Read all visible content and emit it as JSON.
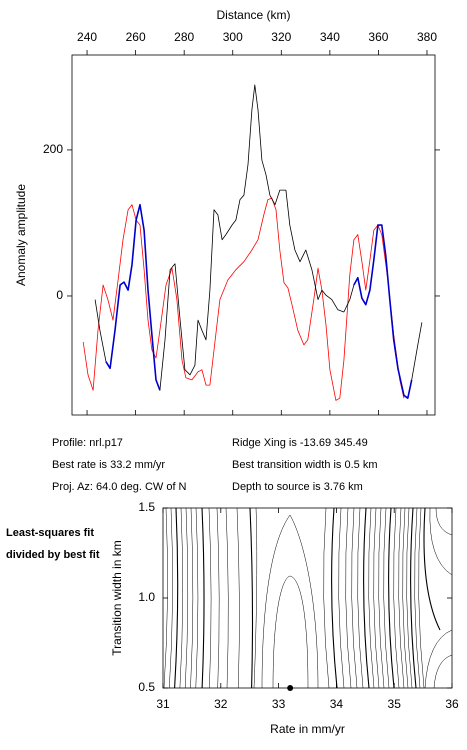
{
  "chart_data": [
    {
      "type": "line",
      "xlabel": "Distance (km)",
      "ylabel": "Anomaly amplitude",
      "xlim": [
        233.8,
        383.3
      ],
      "ylim": [
        -163,
        330
      ],
      "xticks": [
        240,
        260,
        280,
        300,
        320,
        340,
        360,
        380
      ],
      "yticks": [
        0,
        200
      ],
      "annotations": [
        "Profile: nrl.p17",
        "Best rate is 33.2 mm/yr",
        "Proj. Az: 64.0 deg. CW of N",
        "Ridge Xing is -13.69 345.49",
        "Best transition width is 0.5 km",
        "Depth to source is   3.76 km"
      ],
      "series": [
        {
          "name": "observed",
          "color": "#000000",
          "width": 0.8,
          "x": [
            243.3,
            245.3,
            247.8,
            249.5,
            251.5,
            253.6,
            255.2,
            256.9,
            258.5,
            260.2,
            261.8,
            263.5,
            265.1,
            266.7,
            268.4,
            270.0,
            272.1,
            274.2,
            276.2,
            278.3,
            280.3,
            282.4,
            284.4,
            285.7,
            287.3,
            289.0,
            290.6,
            292.3,
            293.9,
            295.6,
            297.2,
            299.7,
            301.3,
            303.0,
            304.6,
            306.3,
            307.9,
            309.1,
            310.4,
            312.0,
            313.7,
            315.3,
            317.4,
            319.4,
            321.9,
            323.5,
            325.6,
            327.7,
            330.1,
            332.6,
            335.1,
            336.7,
            338.4,
            340.8,
            343.3,
            345.8,
            348.2,
            349.9,
            351.5,
            353.2,
            354.8,
            356.5,
            358.1,
            359.8,
            361.4,
            363.0,
            364.7,
            366.3,
            368.0,
            370.5,
            372.1,
            373.7,
            376.2,
            377.9
          ],
          "values": [
            -5,
            -47,
            -90,
            -99,
            -47,
            15,
            19,
            8,
            43,
            104,
            125,
            90,
            8,
            -53,
            -115,
            -129,
            -60,
            36,
            44,
            -33,
            -101,
            -108,
            -95,
            -33,
            -47,
            -60,
            8,
            118,
            111,
            77,
            84,
            97,
            104,
            132,
            138,
            180,
            255,
            289,
            255,
            186,
            166,
            138,
            125,
            145,
            145,
            97,
            63,
            47,
            63,
            36,
            -5,
            8,
            1,
            -5,
            -19,
            -22,
            -5,
            15,
            25,
            -3,
            -12,
            8,
            49,
            97,
            97,
            56,
            -5,
            -60,
            -99,
            -136,
            -140,
            -115,
            -67,
            -36
          ]
        },
        {
          "name": "observed-fit-window",
          "color": "#0000cc",
          "width": 1.6,
          "x": [
            243.3,
            245.3,
            247.8,
            249.5,
            251.5,
            253.6,
            255.2,
            256.9,
            258.5,
            260.2,
            261.8,
            263.5,
            265.1,
            266.7,
            268.4,
            270.0,
            272.1,
            274.2,
            276.2,
            278.3,
            280.3,
            282.4,
            284.4,
            285.7,
            287.3,
            289.0,
            290.6,
            292.3,
            293.9,
            295.6,
            297.2,
            299.7,
            301.3,
            303.0,
            304.6,
            306.3,
            307.9,
            309.1,
            310.4,
            312.0,
            313.7,
            315.3,
            317.4,
            319.4,
            321.9,
            323.5,
            325.6,
            327.7,
            330.1,
            332.6,
            335.1,
            336.7,
            338.4,
            340.8,
            343.3,
            345.8,
            348.2,
            349.9,
            351.5,
            353.2,
            354.8,
            356.5,
            358.1,
            359.8,
            361.4,
            363.0,
            364.7,
            366.3,
            368.0,
            370.5,
            372.1,
            373.7,
            376.2,
            377.9
          ],
          "values": [
            null,
            null,
            -90,
            -99,
            -47,
            15,
            19,
            8,
            43,
            104,
            125,
            90,
            8,
            -53,
            -115,
            -129,
            null,
            null,
            null,
            null,
            null,
            null,
            null,
            null,
            null,
            null,
            null,
            null,
            null,
            null,
            null,
            null,
            null,
            null,
            null,
            null,
            null,
            null,
            null,
            null,
            null,
            null,
            null,
            null,
            null,
            null,
            null,
            null,
            null,
            null,
            null,
            null,
            null,
            null,
            null,
            null,
            null,
            15,
            25,
            -3,
            -12,
            8,
            49,
            97,
            97,
            56,
            -5,
            -60,
            -99,
            -136,
            -140,
            -115,
            null,
            null
          ]
        },
        {
          "name": "model",
          "color": "#ff0000",
          "width": 0.8,
          "x": [
            238.4,
            240.4,
            242.5,
            244.5,
            246.6,
            248.6,
            250.7,
            252.8,
            254.8,
            256.9,
            258.5,
            260.2,
            261.8,
            263.5,
            265.1,
            266.7,
            268.4,
            270.0,
            272.5,
            275.0,
            277.0,
            279.1,
            280.7,
            283.2,
            285.7,
            287.3,
            289.0,
            290.6,
            292.3,
            294.7,
            298.0,
            301.3,
            304.6,
            307.9,
            310.4,
            312.8,
            314.5,
            316.1,
            317.8,
            319.4,
            321.1,
            322.7,
            324.4,
            326.8,
            329.3,
            330.9,
            333.4,
            335.1,
            336.7,
            338.4,
            340.0,
            342.5,
            344.1,
            345.8,
            348.2,
            349.9,
            351.5,
            353.2,
            354.8,
            356.5,
            358.1,
            359.8,
            361.4,
            363.9,
            366.3,
            368.8,
            370.5
          ],
          "values": [
            -63,
            -108,
            -129,
            -47,
            15,
            -5,
            -33,
            22,
            77,
            118,
            125,
            104,
            97,
            36,
            -33,
            -74,
            -85,
            -47,
            15,
            38,
            -5,
            -88,
            -112,
            -115,
            -104,
            -101,
            -122,
            -122,
            -74,
            -5,
            22,
            36,
            47,
            63,
            77,
            111,
            132,
            134,
            118,
            63,
            18,
            11,
            -12,
            -47,
            -67,
            -60,
            -5,
            38,
            8,
            -40,
            -101,
            -143,
            -140,
            -88,
            29,
            77,
            84,
            47,
            8,
            49,
            90,
            97,
            84,
            22,
            -53,
            -115,
            -140
          ]
        }
      ]
    },
    {
      "type": "contour",
      "title": "Least-squares fit divided by best fit",
      "xlabel": "Rate in mm/yr",
      "ylabel": "Transition width in km",
      "xlim": [
        31,
        36
      ],
      "ylim": [
        0.5,
        1.5
      ],
      "xticks": [
        31,
        32,
        33,
        34,
        35,
        36
      ],
      "yticks": [
        0.5,
        {
          "value": 1,
          "label": "1.0"
        },
        1.5
      ],
      "best_fit": {
        "x": 33.2,
        "y": 0.5
      }
    }
  ]
}
